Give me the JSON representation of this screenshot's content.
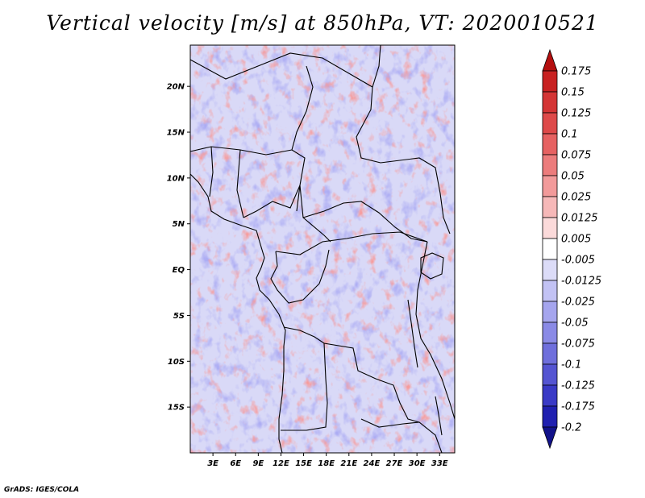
{
  "title": "Vertical velocity [m/s] at 850hPa, VT: 2020010521",
  "credit": "GrADS: IGES/COLA",
  "lat_ticks": [
    "20N",
    "15N",
    "10N",
    "5N",
    "EQ",
    "5S",
    "10S",
    "15S"
  ],
  "lat_values": [
    20,
    15,
    10,
    5,
    0,
    -5,
    -10,
    -15
  ],
  "lon_ticks": [
    "3E",
    "6E",
    "9E",
    "12E",
    "15E",
    "18E",
    "21E",
    "24E",
    "27E",
    "30E",
    "33E"
  ],
  "lon_values": [
    3,
    6,
    9,
    12,
    15,
    18,
    21,
    24,
    27,
    30,
    33
  ],
  "extent": {
    "lon_min": 0,
    "lon_max": 35,
    "lat_min": -20,
    "lat_max": 24.5
  },
  "colorbar": {
    "labels": [
      "0.175",
      "0.15",
      "0.125",
      "0.1",
      "0.075",
      "0.05",
      "0.025",
      "0.0125",
      "0.005",
      "-0.005",
      "-0.0125",
      "-0.025",
      "-0.05",
      "-0.075",
      "-0.1",
      "-0.125",
      "-0.175",
      "-0.2"
    ],
    "colors": [
      "#b40f0f",
      "#c82121",
      "#d43535",
      "#de4a4a",
      "#e66262",
      "#ec7c7c",
      "#f29a9a",
      "#f6b8b8",
      "#fbdada",
      "#ffffff",
      "#dcdcf8",
      "#c2c2f4",
      "#a5a5ee",
      "#8a8ae6",
      "#6f6fdc",
      "#5555d2",
      "#3a3ac6",
      "#2020b0",
      "#12128a"
    ]
  }
}
